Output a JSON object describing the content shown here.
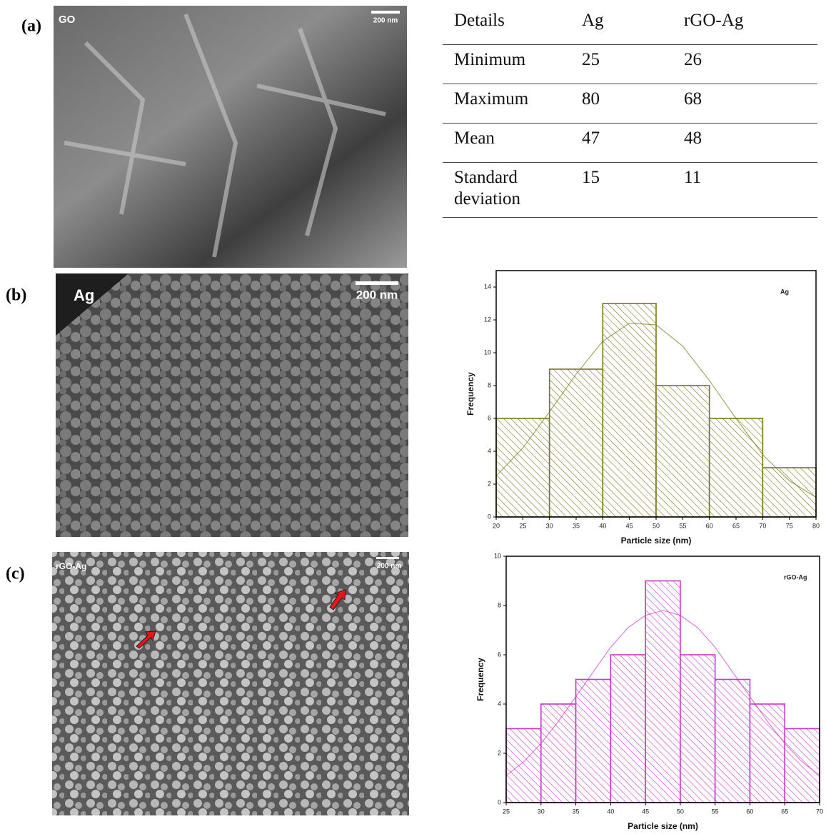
{
  "panels": [
    {
      "label": "(a)",
      "image_label": "GO",
      "scale_bar": "200 nm"
    },
    {
      "label": "(b)",
      "image_label": "Ag",
      "scale_bar": "200 nm"
    },
    {
      "label": "(c)",
      "image_label": "rGO-Ag",
      "scale_bar": "200 nm"
    }
  ],
  "table": {
    "header": [
      "Details",
      "Ag",
      "rGO-Ag"
    ],
    "rows": [
      [
        "Minimum",
        25,
        26
      ],
      [
        "Maximum",
        80,
        68
      ],
      [
        "Mean",
        47,
        48
      ],
      [
        "Standard deviation",
        15,
        11
      ]
    ]
  },
  "chart_data": [
    {
      "type": "histogram",
      "x_label": "Particle size (nm)",
      "y_label": "Frequency",
      "bins": [
        20,
        30,
        40,
        50,
        60,
        70,
        80
      ],
      "series": [
        {
          "name": "Ag",
          "color": "#76761a",
          "values": [
            6,
            9,
            13,
            8,
            6,
            3
          ]
        }
      ],
      "fit": {
        "x": [
          20,
          25,
          30,
          35,
          40,
          45,
          50,
          55,
          60,
          65,
          70,
          75,
          80
        ],
        "values": [
          2.5,
          4.2,
          6.4,
          8.7,
          10.7,
          11.8,
          11.7,
          10.4,
          8.3,
          6.0,
          3.8,
          2.2,
          1.2
        ]
      },
      "xlim": [
        20,
        80
      ],
      "xticks": [
        20,
        25,
        30,
        35,
        40,
        45,
        50,
        55,
        60,
        65,
        70,
        75,
        80
      ],
      "ylim": [
        0,
        15
      ],
      "yticks": [
        0,
        2,
        4,
        6,
        8,
        10,
        12,
        14
      ],
      "legend": "upper right"
    },
    {
      "type": "histogram",
      "x_label": "Particle size (nm)",
      "y_label": "Frequency",
      "bins": [
        25,
        30,
        35,
        40,
        45,
        50,
        55,
        60,
        65,
        70
      ],
      "series": [
        {
          "name": "rGO-Ag",
          "color": "#c837c8",
          "values": [
            3,
            4,
            5,
            6,
            9,
            6,
            5,
            4,
            3
          ]
        }
      ],
      "fit": {
        "x": [
          25,
          27.5,
          30,
          32.5,
          35,
          37.5,
          40,
          42.5,
          45,
          47.5,
          50,
          52.5,
          55,
          57.5,
          60,
          62.5,
          65,
          67.5,
          70
        ],
        "values": [
          1.1,
          1.65,
          2.4,
          3.3,
          4.3,
          5.3,
          6.3,
          7.1,
          7.6,
          7.8,
          7.6,
          7.1,
          6.3,
          5.3,
          4.3,
          3.3,
          2.4,
          1.65,
          1.1
        ]
      },
      "xlim": [
        25,
        70
      ],
      "xticks": [
        25,
        30,
        35,
        40,
        45,
        50,
        55,
        60,
        65,
        70
      ],
      "ylim": [
        0,
        10
      ],
      "yticks": [
        0,
        2,
        4,
        6,
        8,
        10
      ],
      "legend": "upper right"
    }
  ]
}
